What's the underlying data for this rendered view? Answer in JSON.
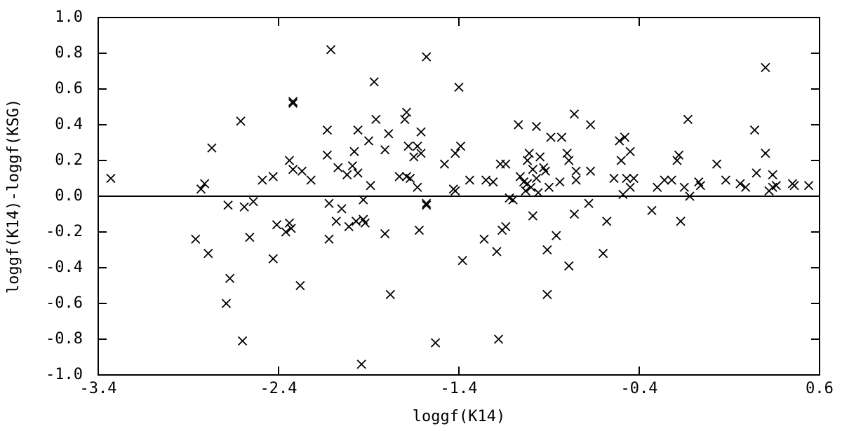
{
  "chart_data": {
    "type": "scatter",
    "x_label": "loggf(K14)",
    "y_label": "loggf(K14)-loggf(KSG)",
    "color": "#000000",
    "marker": "x",
    "xlim": [
      -3.4,
      0.6
    ],
    "xticks": [
      -3.4,
      -2.4,
      -1.4,
      -0.4,
      0.6
    ],
    "ylim": [
      -1.0,
      1.0
    ],
    "yticks": [
      {
        "value": 1.0,
        "label": "1.0"
      },
      0.8,
      0.6,
      0.4,
      0.2,
      {
        "value": 0.0,
        "label": "0.0"
      },
      -0.2,
      -0.4,
      -0.6,
      -0.8,
      {
        "value": -1.0,
        "label": "-1.0"
      }
    ],
    "x": [
      -3.33,
      -2.86,
      -2.83,
      -2.81,
      -2.79,
      -2.77,
      -2.69,
      -2.68,
      -2.67,
      -2.61,
      -2.6,
      -2.59,
      -2.56,
      -2.54,
      -2.49,
      -2.43,
      -2.43,
      -2.41,
      -2.36,
      -2.34,
      -2.34,
      -2.32,
      -2.32,
      -2.33,
      -2.32,
      -2.28,
      -2.27,
      -2.22,
      -2.13,
      -2.13,
      -2.12,
      -2.12,
      -2.11,
      -2.08,
      -2.07,
      -2.05,
      -2.02,
      -2.01,
      -1.99,
      -1.98,
      -1.97,
      -1.96,
      -1.96,
      -1.94,
      -1.93,
      -1.93,
      -1.92,
      -1.9,
      -1.89,
      -1.87,
      -1.86,
      -1.81,
      -1.81,
      -1.79,
      -1.78,
      -1.73,
      -1.7,
      -1.69,
      -1.69,
      -1.68,
      -1.67,
      -1.65,
      -1.63,
      -1.62,
      -1.63,
      -1.61,
      -1.61,
      -1.58,
      -1.58,
      -1.58,
      -1.53,
      -1.48,
      -1.43,
      -1.42,
      -1.42,
      -1.4,
      -1.39,
      -1.38,
      -1.34,
      -1.26,
      -1.25,
      -1.21,
      -1.19,
      -1.18,
      -1.17,
      -1.16,
      -1.14,
      -1.14,
      -1.12,
      -1.1,
      -1.07,
      -1.06,
      -1.04,
      -1.03,
      -1.02,
      -1.02,
      -1.01,
      -1.0,
      -0.99,
      -0.99,
      -0.97,
      -0.97,
      -0.96,
      -0.95,
      -0.93,
      -0.92,
      -0.91,
      -0.91,
      -0.9,
      -0.89,
      -0.86,
      -0.84,
      -0.83,
      -0.8,
      -0.79,
      -0.79,
      -0.76,
      -0.76,
      -0.75,
      -0.75,
      -0.68,
      -0.67,
      -0.67,
      -0.6,
      -0.58,
      -0.54,
      -0.51,
      -0.5,
      -0.49,
      -0.48,
      -0.47,
      -0.45,
      -0.45,
      -0.43,
      -0.33,
      -0.3,
      -0.26,
      -0.22,
      -0.19,
      -0.18,
      -0.17,
      -0.15,
      -0.13,
      -0.12,
      -0.07,
      -0.06,
      0.03,
      0.08,
      0.16,
      0.19,
      0.24,
      0.25,
      0.3,
      0.3,
      0.32,
      0.34,
      0.34,
      0.36,
      0.45,
      0.46,
      0.54
    ],
    "values": [
      0.1,
      -0.24,
      0.04,
      0.07,
      -0.32,
      0.27,
      -0.6,
      -0.05,
      -0.46,
      0.42,
      -0.81,
      -0.06,
      -0.23,
      -0.03,
      0.09,
      0.11,
      -0.35,
      -0.16,
      -0.2,
      -0.15,
      0.2,
      0.53,
      0.52,
      -0.18,
      0.15,
      -0.5,
      0.14,
      0.09,
      0.37,
      0.23,
      -0.04,
      -0.24,
      0.82,
      -0.14,
      0.16,
      -0.07,
      0.12,
      -0.17,
      0.17,
      0.25,
      -0.14,
      0.37,
      0.13,
      -0.94,
      -0.02,
      -0.13,
      -0.15,
      0.31,
      0.06,
      0.64,
      0.43,
      -0.21,
      0.26,
      0.35,
      -0.55,
      0.11,
      0.43,
      0.47,
      0.11,
      0.28,
      0.1,
      0.22,
      0.28,
      -0.19,
      0.05,
      0.24,
      0.36,
      -0.04,
      0.78,
      -0.05,
      -0.82,
      0.18,
      0.04,
      0.03,
      0.24,
      0.61,
      0.28,
      -0.36,
      0.09,
      -0.24,
      0.09,
      0.08,
      -0.31,
      -0.8,
      0.18,
      -0.19,
      0.18,
      -0.17,
      -0.01,
      -0.02,
      0.4,
      0.11,
      0.08,
      0.03,
      0.2,
      0.07,
      0.24,
      0.05,
      0.15,
      -0.11,
      0.39,
      0.1,
      0.02,
      0.22,
      0.16,
      0.14,
      -0.55,
      -0.3,
      0.05,
      0.33,
      -0.22,
      0.08,
      0.33,
      0.24,
      0.2,
      -0.39,
      0.46,
      -0.1,
      0.14,
      0.09,
      -0.04,
      0.14,
      0.4,
      -0.32,
      -0.14,
      0.1,
      0.31,
      0.2,
      0.01,
      0.33,
      0.1,
      0.25,
      0.05,
      0.1,
      -0.08,
      0.05,
      0.09,
      0.09,
      0.2,
      0.23,
      -0.14,
      0.05,
      0.43,
      0.0,
      0.08,
      0.06,
      0.18,
      0.09,
      0.07,
      0.05,
      0.37,
      0.13,
      0.72,
      0.24,
      0.03,
      0.12,
      0.05,
      0.06,
      0.07,
      0.06,
      0.06
    ],
    "zero_line": true
  }
}
